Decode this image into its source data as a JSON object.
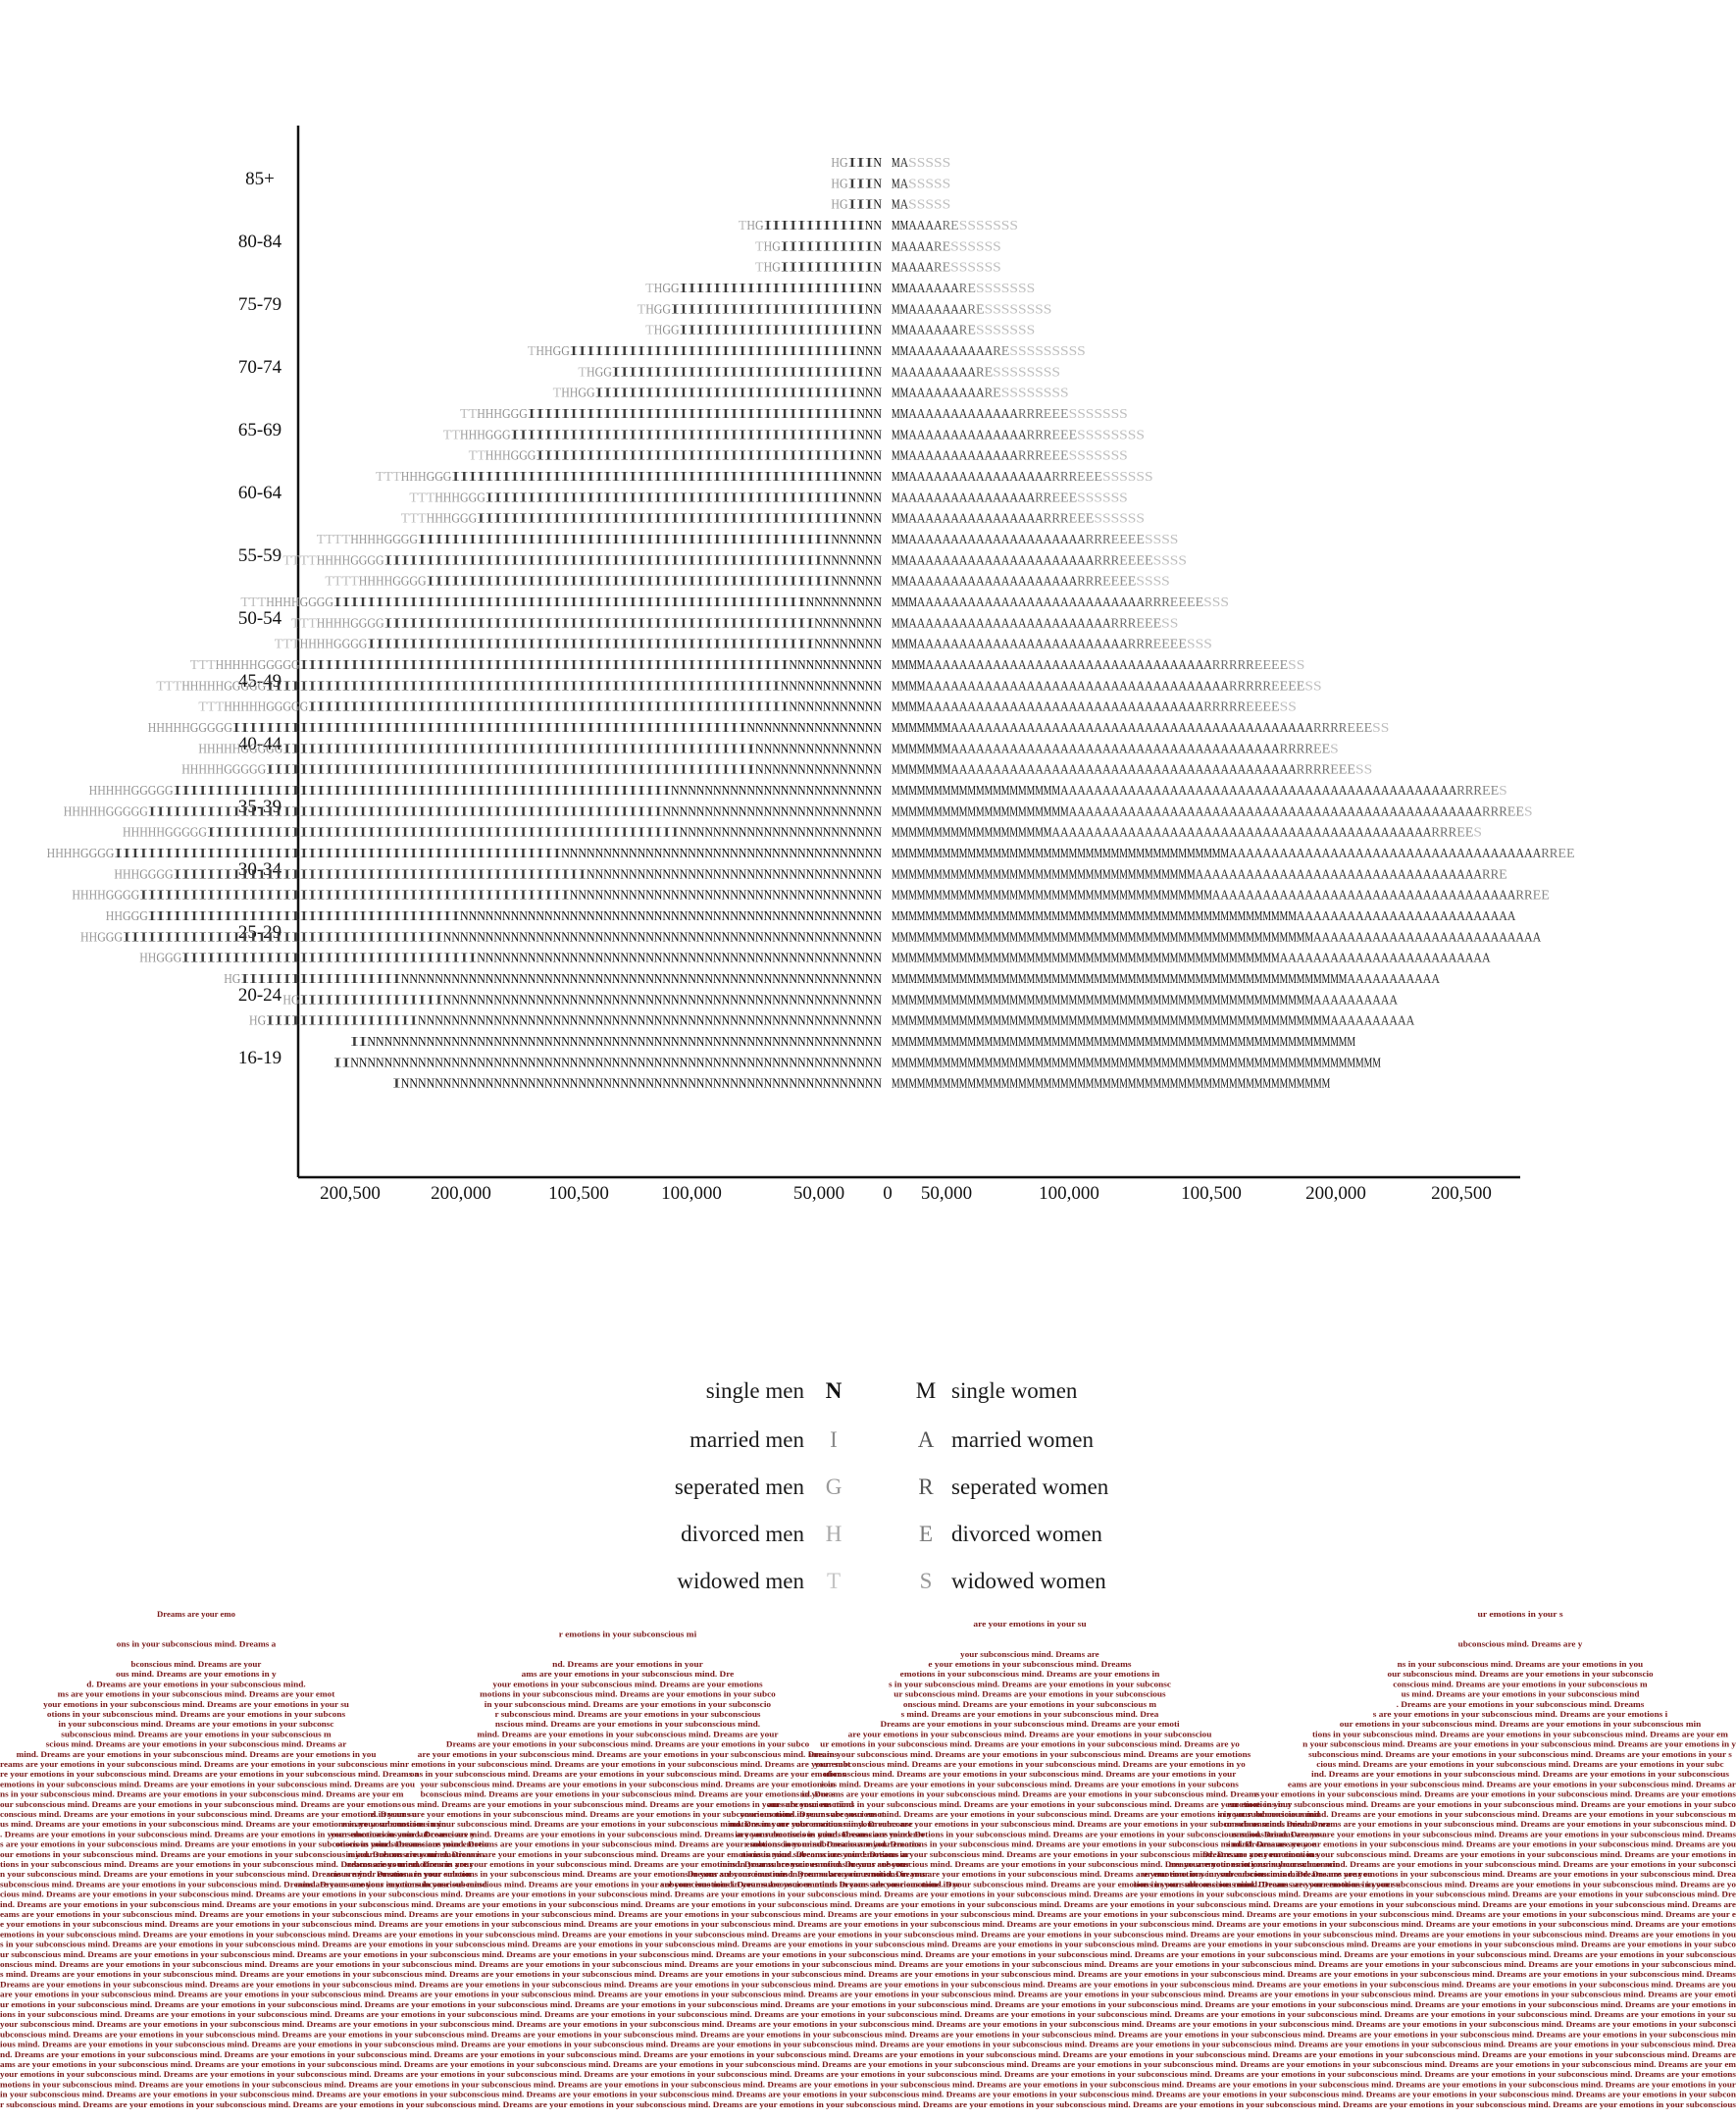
{
  "chart_data": {
    "type": "bar",
    "subtype": "population-pyramid",
    "title": "",
    "xlabel": "",
    "ylabel": "",
    "age_groups": [
      "16-19",
      "20-24",
      "25-29",
      "30-34",
      "35-39",
      "40-44",
      "45-49",
      "50-54",
      "55-59",
      "60-64",
      "65-69",
      "70-74",
      "75-79",
      "80-84",
      "85+"
    ],
    "x_tick_labels": [
      "200,500",
      "200,000",
      "100,500",
      "100,000",
      "50,000",
      "0",
      "50,000",
      "100,000",
      "100,500",
      "200,000",
      "200,500"
    ],
    "men": {
      "side": "left",
      "series": [
        {
          "name": "single men",
          "symbol": "N",
          "color": "#111111",
          "values": [
            115000,
            108000,
            95000,
            72000,
            48000,
            30000,
            22000,
            16000,
            12000,
            8000,
            6000,
            5000,
            4000,
            3000,
            2500
          ]
        },
        {
          "name": "married men",
          "symbol": "I",
          "color": "#3a3a3a",
          "values": [
            3000,
            35000,
            70000,
            100000,
            112000,
            115000,
            112000,
            105000,
            95000,
            88000,
            75000,
            62000,
            42000,
            22000,
            5000
          ]
        },
        {
          "name": "seperated men",
          "symbol": "G",
          "color": "#8a8a8a",
          "values": [
            0,
            2000,
            5000,
            8000,
            10000,
            10000,
            9000,
            8000,
            7000,
            6000,
            5000,
            4000,
            3000,
            2000,
            500
          ]
        },
        {
          "name": "divorced men",
          "symbol": "H",
          "color": "#9a9a9a",
          "values": [
            0,
            1000,
            4000,
            7000,
            9000,
            10000,
            9000,
            8000,
            7000,
            6000,
            5000,
            3000,
            2000,
            1000,
            500
          ]
        },
        {
          "name": "widowed men",
          "symbol": "T",
          "color": "#bdbdbd",
          "values": [
            0,
            0,
            0,
            0,
            0,
            0,
            5000,
            6000,
            7000,
            6000,
            3000,
            1000,
            500,
            500,
            0
          ]
        }
      ]
    },
    "women": {
      "side": "right",
      "series": [
        {
          "name": "single women",
          "symbol": "M",
          "color": "#111111",
          "values": [
            105000,
            102000,
            92000,
            75000,
            38000,
            14000,
            8000,
            5000,
            4000,
            3000,
            3000,
            3000,
            3000,
            3000,
            2500
          ]
        },
        {
          "name": "married women",
          "symbol": "A",
          "color": "#3a3a3a",
          "values": [
            0,
            20000,
            50000,
            70000,
            90000,
            80000,
            65000,
            50000,
            40000,
            32000,
            25000,
            18000,
            12000,
            8000,
            2000
          ]
        },
        {
          "name": "seperated women",
          "symbol": "R",
          "color": "#6e6e6e",
          "values": [
            0,
            0,
            0,
            4000,
            6000,
            8000,
            10000,
            6000,
            5000,
            5000,
            5000,
            2000,
            1000,
            500,
            0
          ]
        },
        {
          "name": "divorced women",
          "symbol": "E",
          "color": "#8a8a8a",
          "values": [
            0,
            0,
            0,
            3000,
            4000,
            5000,
            8000,
            7000,
            8000,
            6000,
            5000,
            2000,
            1000,
            500,
            0
          ]
        },
        {
          "name": "widowed women",
          "symbol": "S",
          "color": "#bdbdbd",
          "values": [
            0,
            0,
            0,
            0,
            2000,
            3000,
            4000,
            5000,
            8000,
            12000,
            14000,
            16000,
            14000,
            12000,
            9000
          ]
        }
      ]
    },
    "grid": false,
    "legend_position": "bottom-center"
  },
  "legend": {
    "rows": [
      {
        "men_label": "single men",
        "men_symbol": "N",
        "women_symbol": "M",
        "women_label": "single women"
      },
      {
        "men_label": "married men",
        "men_symbol": "I",
        "women_symbol": "A",
        "women_label": "married women"
      },
      {
        "men_label": "seperated men",
        "men_symbol": "G",
        "women_symbol": "R",
        "women_label": "seperated women"
      },
      {
        "men_label": "divorced men",
        "men_symbol": "H",
        "women_symbol": "E",
        "women_label": "divorced women"
      },
      {
        "men_label": "widowed men",
        "men_symbol": "T",
        "women_symbol": "S",
        "women_label": "widowed women"
      }
    ],
    "symbol_colors": {
      "N": "#111111",
      "I": "#8a8a8a",
      "G": "#9a9a9a",
      "H": "#a8a8a8",
      "T": "#c4c4c4",
      "M": "#111111",
      "A": "#555555",
      "R": "#555555",
      "E": "#7a7a7a",
      "S": "#999999"
    }
  },
  "footer": {
    "phrase": "Dreams are your emotions in your subconscious mind.",
    "color": "#7a1a1a"
  }
}
